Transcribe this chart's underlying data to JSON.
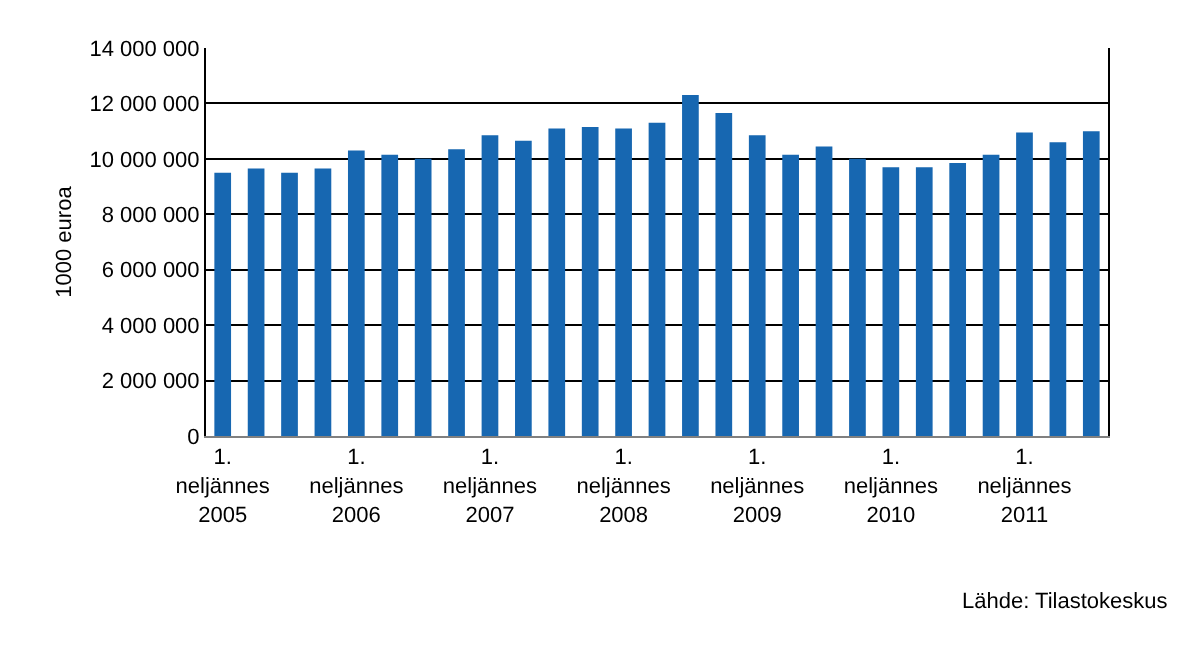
{
  "chart_data": {
    "type": "bar",
    "ylabel": "1000 euroa",
    "categories": [
      "1.\nneljännes\n2005",
      null,
      null,
      null,
      "1.\nneljännes\n2006",
      null,
      null,
      null,
      "1.\nneljännes\n2007",
      null,
      null,
      null,
      "1.\nneljännes\n2008",
      null,
      null,
      null,
      "1.\nneljännes\n2009",
      null,
      null,
      null,
      "1.\nneljännes\n2010",
      null,
      null,
      null,
      "1.\nneljännes\n2011",
      null,
      null
    ],
    "values": [
      9500000,
      9650000,
      9500000,
      9650000,
      10300000,
      10150000,
      10000000,
      10350000,
      10850000,
      10650000,
      11100000,
      11150000,
      11100000,
      11300000,
      12300000,
      11650000,
      10850000,
      10150000,
      10450000,
      10000000,
      9700000,
      9700000,
      9850000,
      10150000,
      10950000,
      10600000,
      11000000
    ],
    "color": "#1767b1",
    "ylim": [
      0,
      14000000
    ],
    "yticks": [
      0,
      {
        "value": 2000000,
        "label": "2 000 000"
      },
      {
        "value": 4000000,
        "label": "4 000 000"
      },
      {
        "value": 6000000,
        "label": "6 000 000"
      },
      {
        "value": 8000000,
        "label": "8 000 000"
      },
      {
        "value": 10000000,
        "label": "10 000 000"
      },
      {
        "value": 12000000,
        "label": "12 000 000"
      },
      {
        "value": 14000000,
        "label": "14 000 000"
      }
    ],
    "grid": "y",
    "legend": false,
    "annotations": [
      "Lähde: Tilastokeskus"
    ]
  }
}
